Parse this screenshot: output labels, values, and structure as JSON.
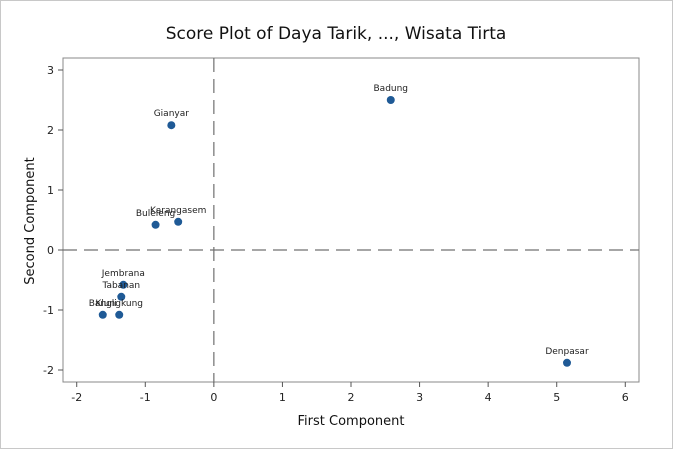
{
  "chart_data": {
    "type": "scatter",
    "title": "Score Plot of Daya Tarik, ..., Wisata Tirta",
    "xlabel": "First Component",
    "ylabel": "Second Component",
    "xlim": [
      -2.2,
      6.2
    ],
    "ylim": [
      -2.2,
      3.2
    ],
    "xticks": [
      -2,
      -1,
      0,
      1,
      2,
      3,
      4,
      5,
      6
    ],
    "yticks": [
      -2,
      -1,
      0,
      1,
      2,
      3
    ],
    "reference_lines": {
      "x": 0,
      "y": 0,
      "style": "dashed"
    },
    "marker_color": "#1f5a96",
    "points": [
      {
        "label": "Badung",
        "x": 2.58,
        "y": 2.5
      },
      {
        "label": "Gianyar",
        "x": -0.62,
        "y": 2.08
      },
      {
        "label": "Buleleng",
        "x": -0.85,
        "y": 0.42
      },
      {
        "label": "Karangasem",
        "x": -0.52,
        "y": 0.47
      },
      {
        "label": "Jembrana",
        "x": -1.32,
        "y": -0.58
      },
      {
        "label": "Tabanan",
        "x": -1.35,
        "y": -0.78
      },
      {
        "label": "Bangli",
        "x": -1.62,
        "y": -1.08
      },
      {
        "label": "Klungkung",
        "x": -1.38,
        "y": -1.08
      },
      {
        "label": "Denpasar",
        "x": 5.15,
        "y": -1.88
      }
    ]
  }
}
